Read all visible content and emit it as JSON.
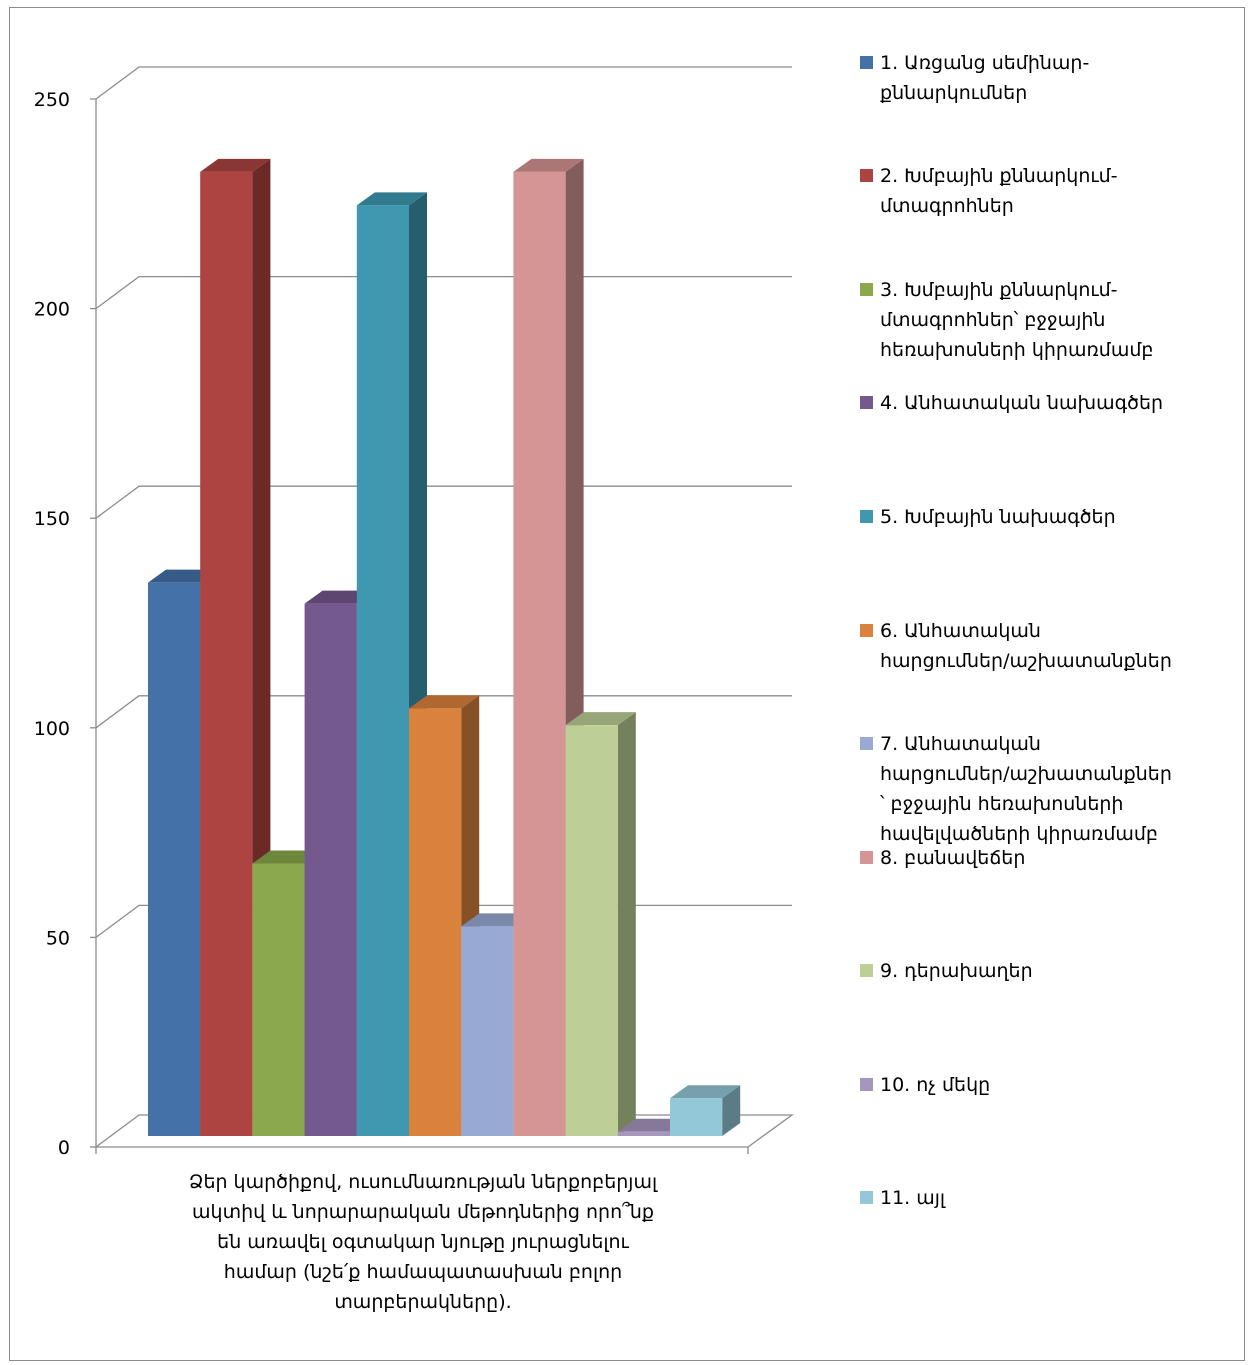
{
  "chart_data": {
    "type": "bar",
    "category": "Ձեր կարծիքով, ուսումնառության ներքոբերյալ ակտիվ և նորարարական մեթոդներից որո՞նք են առավել օգտակար նյութը յուրացնելու համար (նշե՛ք համապատասխան բոլոր տարբերակները).",
    "category_lines": [
      "Ձեր կարծիքով, ուսումնառության ներքոբերյալ",
      "ակտիվ և նորարարական մեթոդներից որո՞նք",
      "են առավել օգտակար նյութը յուրացնելու",
      "համար (նշե՛ք համապատասխան բոլոր",
      "տարբերակները)."
    ],
    "ylim": [
      0,
      250
    ],
    "yticks": [
      "0",
      "50",
      "100",
      "150",
      "200",
      "250"
    ],
    "grid": true,
    "legend_position": "right",
    "three_d": true,
    "series": [
      {
        "name": "1. Առցանց սեմինար-քննարկումներ",
        "lines": [
          "1. Առցանց սեմինար-",
          "քննարկումներ"
        ],
        "value": 132,
        "color": "#4472A8"
      },
      {
        "name": "2. Խմբային քննարկում-մտագրոհներ",
        "lines": [
          "2. Խմբային քննարկում-",
          "մտագրոհներ"
        ],
        "value": 230,
        "color": "#AD4441"
      },
      {
        "name": "3. Խմբային քննարկում-մտագրոհներ՝ բջջային հեռախոսների կիրառմամբ",
        "lines": [
          "3. Խմբային քննարկում-",
          "մտագրոհներ՝ բջջային",
          "հեռախոսների կիրառմամբ"
        ],
        "value": 65,
        "color": "#8BA84C"
      },
      {
        "name": "4. Անհատական նախագծեր",
        "lines": [
          "4. Անհատական նախագծեր"
        ],
        "value": 127,
        "color": "#74598F"
      },
      {
        "name": "5. Խմբային նախագծեր",
        "lines": [
          "5. Խմբային նախագծեր"
        ],
        "value": 222,
        "color": "#3F98B0"
      },
      {
        "name": "6. Անհատական հարցումներ/աշխատանքներ",
        "lines": [
          "6. Անհատական",
          "հարցումներ/աշխատանքներ"
        ],
        "value": 102,
        "color": "#DA823C"
      },
      {
        "name": "7. Անհատական հարցումներ/աշխատանքներ՝ բջջային հեռախոսների հավելվածների կիրառմամբ",
        "lines": [
          "7. Անհատական",
          "հարցումներ/աշխատանքներ",
          "՝ բջջային հեռախոսների",
          "հավելվածների կիրառմամբ"
        ],
        "value": 50,
        "color": "#98AAD3"
      },
      {
        "name": "8. բանավեճեր",
        "lines": [
          "8. բանավեճեր"
        ],
        "value": 230,
        "color": "#D49594"
      },
      {
        "name": "9. դերախաղեր",
        "lines": [
          "9. դերախաղեր"
        ],
        "value": 98,
        "color": "#BDCF96"
      },
      {
        "name": "10. ոչ մեկը",
        "lines": [
          "10. ոչ մեկը"
        ],
        "value": 1,
        "color": "#A696BE"
      },
      {
        "name": "11. այլ",
        "lines": [
          "11. այլ"
        ],
        "value": 9,
        "color": "#92C8D8"
      }
    ]
  }
}
